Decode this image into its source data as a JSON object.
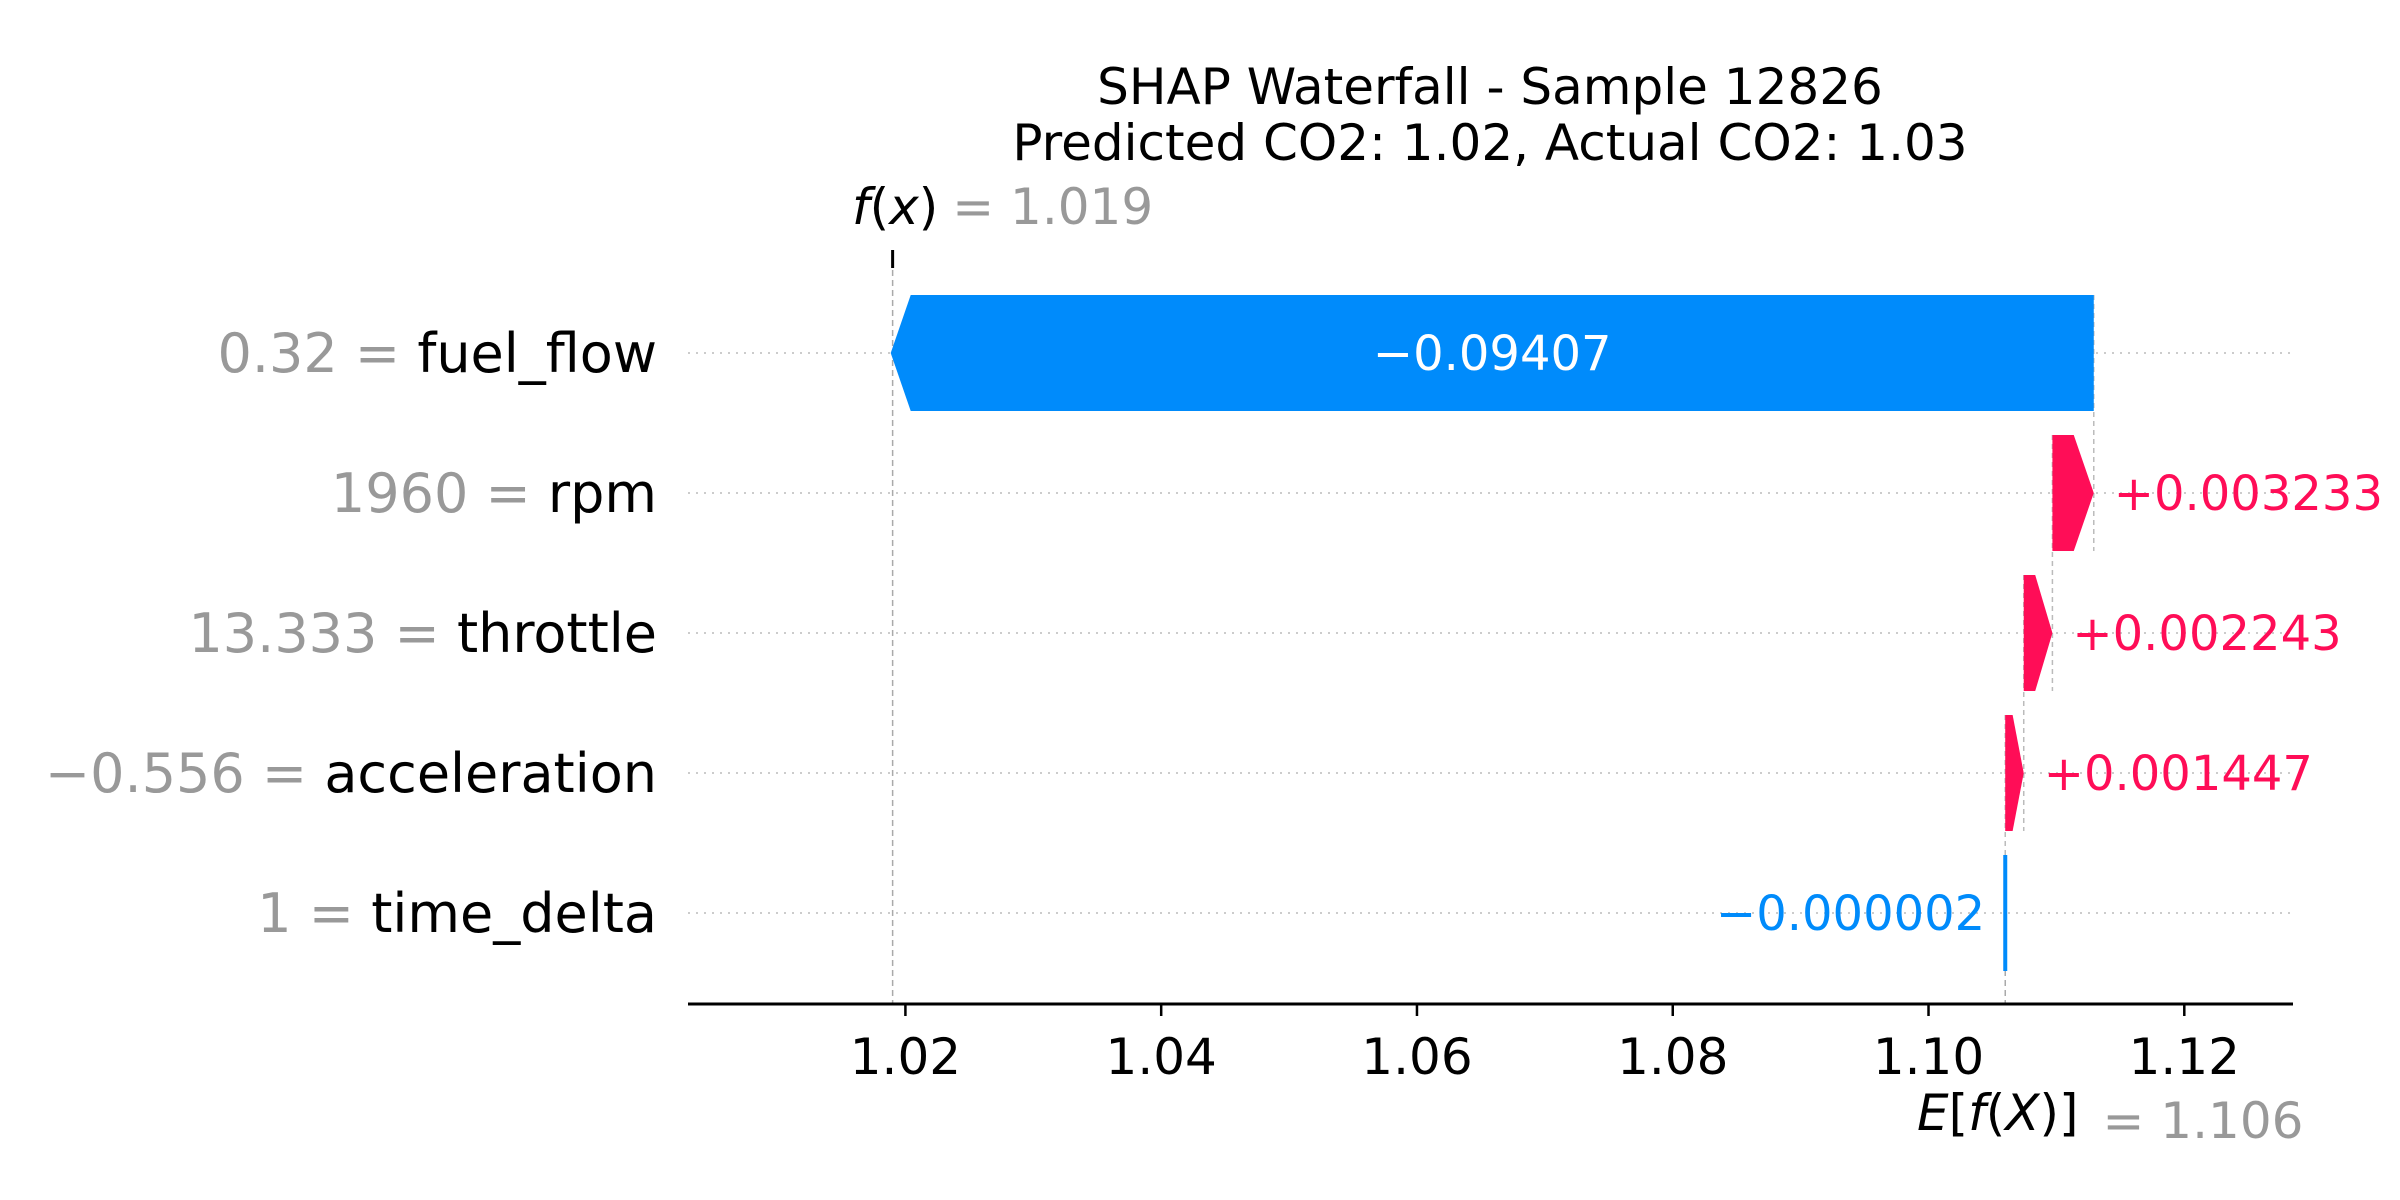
{
  "chart_data": {
    "type": "waterfall",
    "title": "SHAP Waterfall - Sample 12826",
    "subtitle": "Predicted CO2: 1.02, Actual CO2: 1.03",
    "base_value": 1.106,
    "base_value_label": "= 1.106",
    "prediction": 1.019,
    "prediction_label": "= 1.019",
    "xlim": [
      1.003,
      1.1285
    ],
    "ticks": [
      1.02,
      1.04,
      1.06,
      1.08,
      1.1,
      1.12
    ],
    "tick_labels": [
      "1.02",
      "1.04",
      "1.06",
      "1.08",
      "1.10",
      "1.12"
    ],
    "features": [
      {
        "name": "fuel_flow",
        "value": "0.32",
        "shap": -0.09407,
        "label": "−0.09407"
      },
      {
        "name": "rpm",
        "value": "1960",
        "shap": 0.003233,
        "label": "+0.003233"
      },
      {
        "name": "throttle",
        "value": "13.333",
        "shap": 0.002243,
        "label": "+0.002243"
      },
      {
        "name": "acceleration",
        "value": "−0.556",
        "shap": 0.001447,
        "label": "+0.001447"
      },
      {
        "name": "time_delta",
        "value": "1",
        "shap": -2e-06,
        "label": "−0.000002"
      }
    ],
    "colors": {
      "positive": "#ff0d57",
      "negative": "#008bfb"
    }
  }
}
